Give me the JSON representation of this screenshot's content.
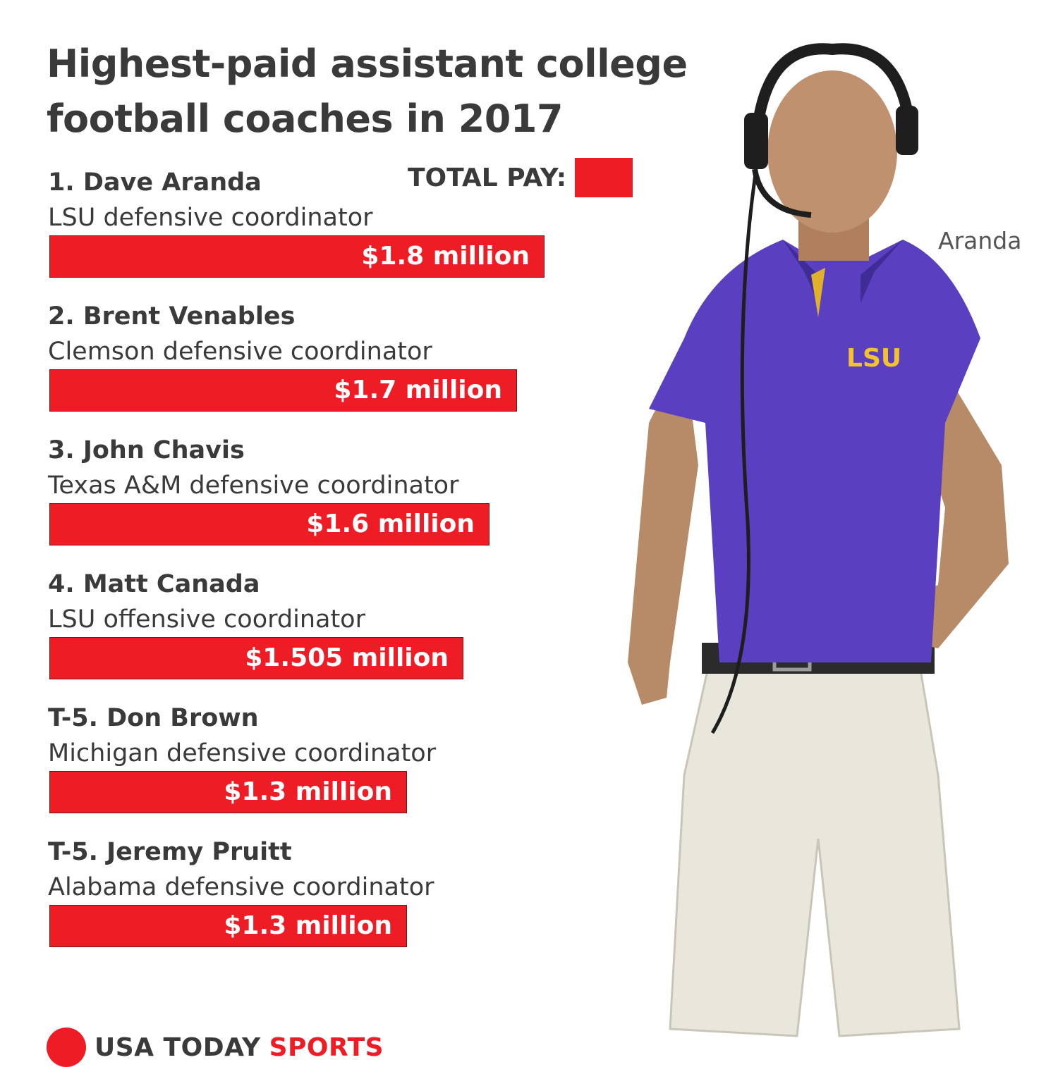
{
  "header": {
    "title_line1": "Highest-paid assistant college",
    "title_line2": "football coaches in 2017"
  },
  "legend": {
    "label": "TOTAL PAY:",
    "color": "#ee1c25"
  },
  "photo": {
    "caption": "Aranda"
  },
  "logo": {
    "usa": "USA TODAY",
    "sports": "SPORTS",
    "color": "#ee1c25"
  },
  "chart_data": {
    "type": "bar",
    "title": "Highest-paid assistant college football coaches in 2017",
    "legend": "TOTAL PAY:",
    "orientation": "horizontal",
    "unit": "million dollars",
    "bar_color": "#ee1c25",
    "categories": [
      "1. Dave Aranda",
      "2. Brent Venables",
      "3. John Chavis",
      "4. Matt Canada",
      "T-5. Don Brown",
      "T-5. Jeremy Pruitt"
    ],
    "roles": [
      "LSU defensive coordinator",
      "Clemson defensive coordinator",
      "Texas A&M defensive coordinator",
      "LSU offensive coordinator",
      "Michigan defensive coordinator",
      "Alabama defensive coordinator"
    ],
    "values": [
      1.8,
      1.7,
      1.6,
      1.505,
      1.3,
      1.3
    ],
    "labels": [
      "$1.8 million",
      "$1.7 million",
      "$1.6 million",
      "$1.505 million",
      "$1.3 million",
      "$1.3 million"
    ]
  }
}
